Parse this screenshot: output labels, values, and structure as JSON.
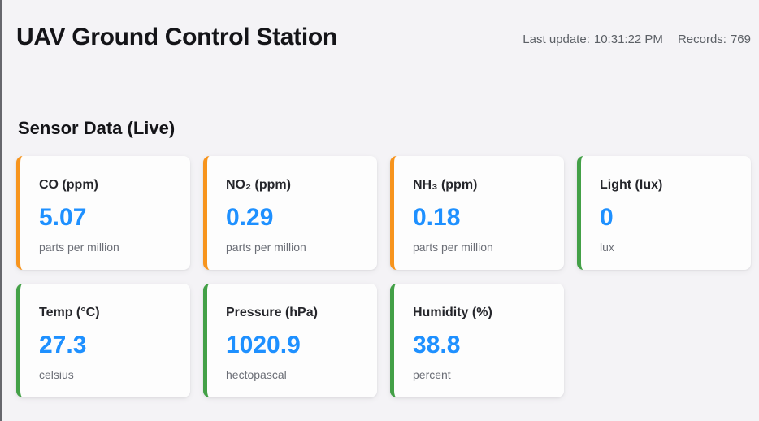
{
  "header": {
    "title": "UAV Ground Control Station",
    "last_update_label": "Last update:",
    "last_update_time": "10:31:22 PM",
    "records_label": "Records:",
    "records_value": "769"
  },
  "section": {
    "title": "Sensor Data (Live)"
  },
  "cards": [
    {
      "title": "CO (ppm)",
      "value": "5.07",
      "unit": "parts per million",
      "accent": "#F7941D"
    },
    {
      "title": "NO₂ (ppm)",
      "value": "0.29",
      "unit": "parts per million",
      "accent": "#F7941D"
    },
    {
      "title": "NH₃ (ppm)",
      "value": "0.18",
      "unit": "parts per million",
      "accent": "#F7941D"
    },
    {
      "title": "Light (lux)",
      "value": "0",
      "unit": "lux",
      "accent": "#43A047"
    },
    {
      "title": "Temp (°C)",
      "value": "27.3",
      "unit": "celsius",
      "accent": "#43A047"
    },
    {
      "title": "Pressure (hPa)",
      "value": "1020.9",
      "unit": "hectopascal",
      "accent": "#43A047"
    },
    {
      "title": "Humidity (%)",
      "value": "38.8",
      "unit": "percent",
      "accent": "#43A047"
    }
  ],
  "colors": {
    "background": "#F4F3F6",
    "card_background": "#FDFDFD",
    "value_text": "#1E90FF",
    "accent_orange": "#F7941D",
    "accent_green": "#43A047",
    "left_edge": "#67676D",
    "divider": "#DCDADE"
  }
}
